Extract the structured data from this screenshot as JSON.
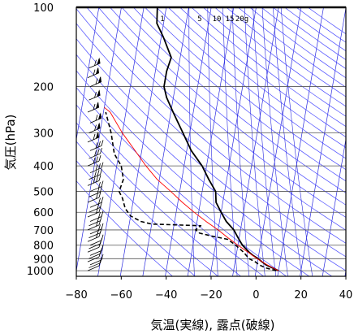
{
  "chart_data": {
    "type": "line",
    "subtype": "skew-t log-p",
    "xlabel": "気温(実線), 露点(破線)",
    "ylabel": "気圧(hPa)",
    "x_ticks": [
      -80,
      -60,
      -40,
      -20,
      0,
      20,
      40
    ],
    "y_ticks": [
      100,
      200,
      300,
      400,
      500,
      600,
      700,
      800,
      900,
      1000
    ],
    "y_scale": "log (inverted)",
    "xlim": [
      -80,
      40
    ],
    "ylim": [
      1050,
      100
    ],
    "grid": true,
    "mixing_ratio_labels": [
      "1",
      "5",
      "10",
      "15",
      "20g"
    ],
    "colors": {
      "temperature": "#000000",
      "dewpoint": "#000000",
      "parcel": "#ff0000",
      "isotherm": "#2a2ae0",
      "dry_adiabat": "#4a4aff",
      "mixing_ratio": "#2a2ae0",
      "grid": "#555555",
      "wind": "#000000"
    },
    "series": [
      {
        "style": "solid",
        "points": [
          {
            "p": 1000,
            "t": 10
          },
          {
            "p": 975,
            "t": 7
          },
          {
            "p": 950,
            "t": 4
          },
          {
            "p": 925,
            "t": 2
          },
          {
            "p": 900,
            "t": 0
          },
          {
            "p": 875,
            "t": -2.5
          },
          {
            "p": 850,
            "t": -4.5
          },
          {
            "p": 800,
            "t": -8
          },
          {
            "p": 750,
            "t": -10.5
          },
          {
            "p": 700,
            "t": -13
          },
          {
            "p": 650,
            "t": -17
          },
          {
            "p": 600,
            "t": -20
          },
          {
            "p": 550,
            "t": -23
          },
          {
            "p": 500,
            "t": -24
          },
          {
            "p": 450,
            "t": -28
          },
          {
            "p": 400,
            "t": -32
          },
          {
            "p": 350,
            "t": -38
          },
          {
            "p": 300,
            "t": -43
          },
          {
            "p": 250,
            "t": -49
          },
          {
            "p": 220,
            "t": -53
          },
          {
            "p": 200,
            "t": -55
          },
          {
            "p": 175,
            "t": -55
          },
          {
            "p": 155,
            "t": -54
          },
          {
            "p": 130,
            "t": -59
          },
          {
            "p": 115,
            "t": -63
          },
          {
            "p": 100,
            "t": -64
          }
        ]
      },
      {
        "style": "dashed",
        "points": [
          {
            "p": 1000,
            "t": 9
          },
          {
            "p": 975,
            "t": 4
          },
          {
            "p": 950,
            "t": 1
          },
          {
            "p": 925,
            "t": -1
          },
          {
            "p": 900,
            "t": -4
          },
          {
            "p": 850,
            "t": -7
          },
          {
            "p": 800,
            "t": -11
          },
          {
            "p": 760,
            "t": -15
          },
          {
            "p": 740,
            "t": -22
          },
          {
            "p": 720,
            "t": -28
          },
          {
            "p": 700,
            "t": -30
          },
          {
            "p": 675,
            "t": -28
          },
          {
            "p": 665,
            "t": -50
          },
          {
            "p": 650,
            "t": -55
          },
          {
            "p": 620,
            "t": -60
          },
          {
            "p": 580,
            "t": -63
          },
          {
            "p": 530,
            "t": -65
          },
          {
            "p": 500,
            "t": -67
          },
          {
            "p": 450,
            "t": -66
          },
          {
            "p": 400,
            "t": -68
          },
          {
            "p": 360,
            "t": -72
          },
          {
            "p": 300,
            "t": -75
          },
          {
            "p": 250,
            "t": -79
          }
        ]
      },
      {
        "style": "solid",
        "points": [
          {
            "p": 1000,
            "t": 10
          },
          {
            "p": 950,
            "t": 4.5
          },
          {
            "p": 900,
            "t": -0.5
          },
          {
            "p": 850,
            "t": -5
          },
          {
            "p": 800,
            "t": -10
          },
          {
            "p": 750,
            "t": -15
          },
          {
            "p": 700,
            "t": -20
          },
          {
            "p": 650,
            "t": -26
          },
          {
            "p": 600,
            "t": -32
          },
          {
            "p": 550,
            "t": -38
          },
          {
            "p": 500,
            "t": -44
          },
          {
            "p": 450,
            "t": -51
          },
          {
            "p": 400,
            "t": -57
          },
          {
            "p": 350,
            "t": -63
          },
          {
            "p": 300,
            "t": -70
          },
          {
            "p": 250,
            "t": -77
          },
          {
            "p": 240,
            "t": -80
          }
        ]
      }
    ],
    "wind_barbs_pressure": [
      1000,
      975,
      950,
      925,
      900,
      875,
      850,
      825,
      800,
      775,
      750,
      725,
      700,
      675,
      650,
      625,
      600,
      575,
      550,
      525,
      500,
      475,
      450,
      425,
      400,
      375,
      350,
      325,
      300,
      275,
      250,
      225,
      200,
      185,
      170
    ]
  }
}
